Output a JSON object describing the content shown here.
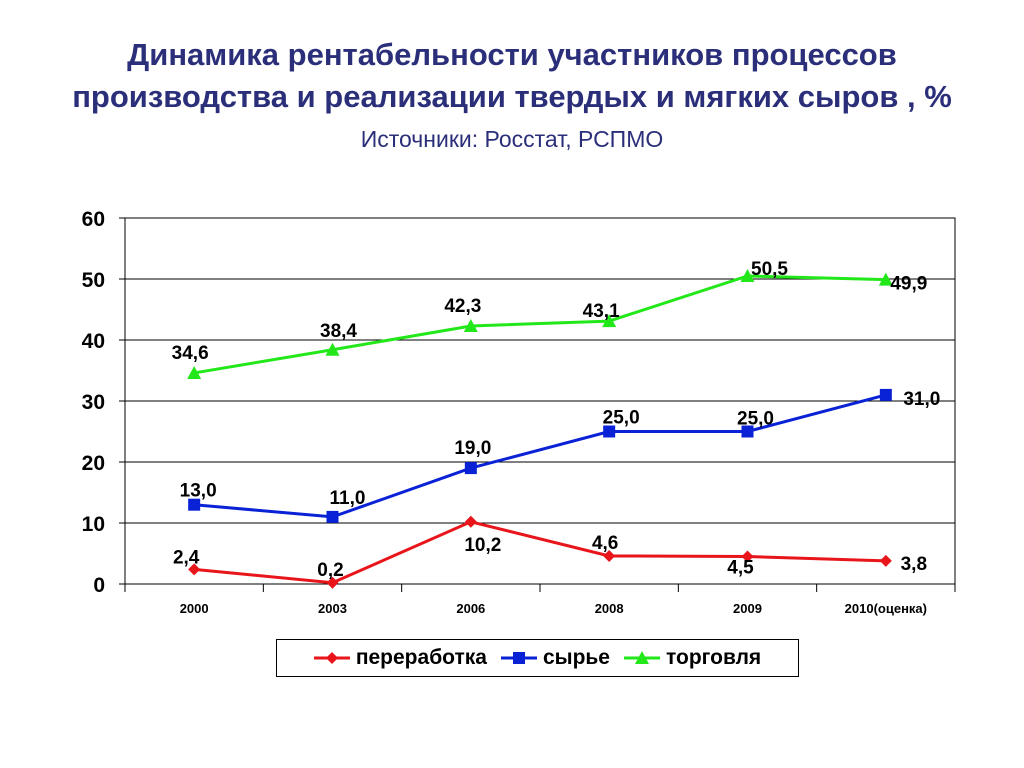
{
  "title_line1": "Динамика рентабельности участников процессов",
  "title_line2": "производства и реализации твердых и мягких сыров , %",
  "subtitle": "Источники: Росстат, РСПМО",
  "chart_data": {
    "type": "line",
    "categories": [
      "2000",
      "2003",
      "2006",
      "2008",
      "2009",
      "2010(оценка)"
    ],
    "ylim": [
      0,
      60
    ],
    "yticks": [
      0,
      10,
      20,
      30,
      40,
      50,
      60
    ],
    "ytick_labels": [
      "0",
      "10",
      "20",
      "30",
      "40",
      "50",
      "60"
    ],
    "grid": "horizontal",
    "legend_position": "bottom",
    "series": [
      {
        "name": "переработка",
        "values": [
          2.4,
          0.2,
          10.2,
          4.6,
          4.5,
          3.8
        ],
        "labels": [
          "2,4",
          "0,2",
          "10,2",
          "4,6",
          "4,5",
          "3,8"
        ],
        "color": "#e8151b",
        "marker": "diamond"
      },
      {
        "name": "сырье",
        "values": [
          13.0,
          11.0,
          19.0,
          25.0,
          25.0,
          31.0
        ],
        "labels": [
          "13,0",
          "11,0",
          "19,0",
          "25,0",
          "25,0",
          "31,0"
        ],
        "color": "#0a22d6",
        "marker": "square"
      },
      {
        "name": "торговля",
        "values": [
          34.6,
          38.4,
          42.3,
          43.1,
          50.5,
          49.9
        ],
        "labels": [
          "34,6",
          "38,4",
          "42,3",
          "43,1",
          "50,5",
          "49,9"
        ],
        "color": "#22e81a",
        "marker": "triangle"
      }
    ]
  }
}
